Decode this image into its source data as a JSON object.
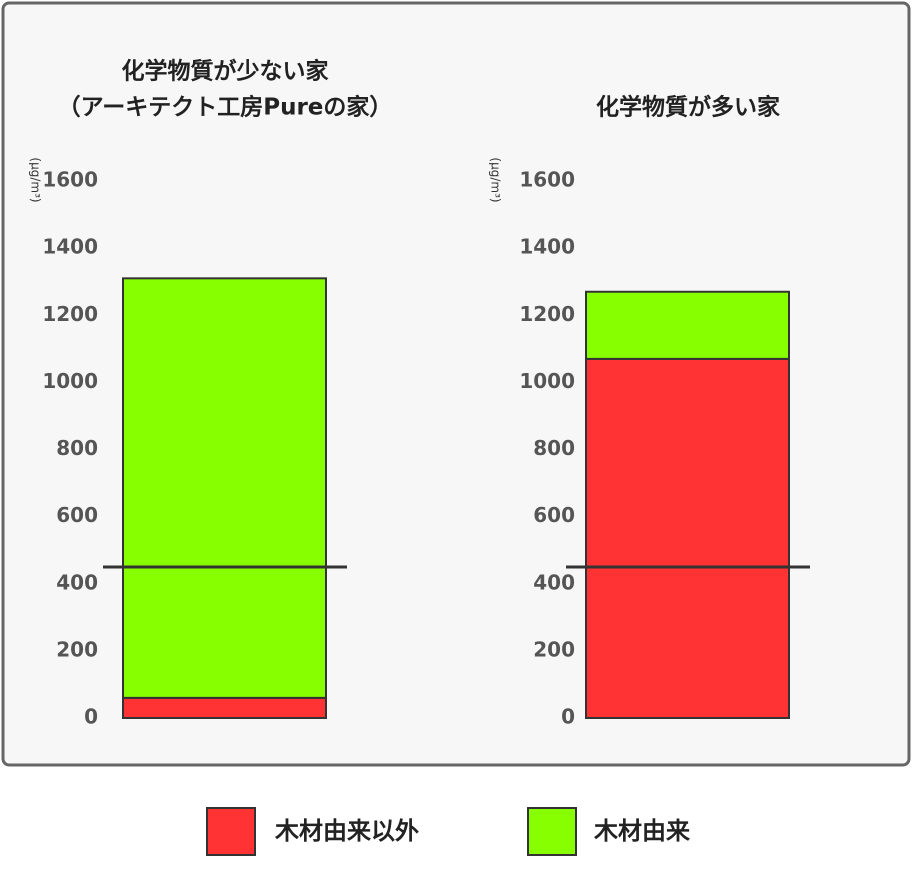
{
  "chart_data": [
    {
      "type": "bar",
      "title": "化学物質が少ない家",
      "subtitle": "（アーキテクト工房Pureの家）",
      "ylabel": "(μg/m³)",
      "series": [
        {
          "name": "木材由来以外",
          "color": "#ff3333",
          "values": [
            60
          ]
        },
        {
          "name": "木材由来",
          "color": "#88ff00",
          "values": [
            1250
          ]
        }
      ],
      "ylim": [
        0,
        1600
      ],
      "yticks": [
        0,
        200,
        400,
        600,
        800,
        1000,
        1200,
        1400,
        1600
      ],
      "reference_line": 450,
      "stacked": true
    },
    {
      "type": "bar",
      "title": "化学物質が多い家",
      "ylabel": "(μg/m³)",
      "series": [
        {
          "name": "木材由来以外",
          "color": "#ff3333",
          "values": [
            1070
          ]
        },
        {
          "name": "木材由来",
          "color": "#88ff00",
          "values": [
            200
          ]
        }
      ],
      "ylim": [
        0,
        1600
      ],
      "yticks": [
        0,
        200,
        400,
        600,
        800,
        1000,
        1200,
        1400,
        1600
      ],
      "reference_line": 450,
      "stacked": true
    }
  ]
}
